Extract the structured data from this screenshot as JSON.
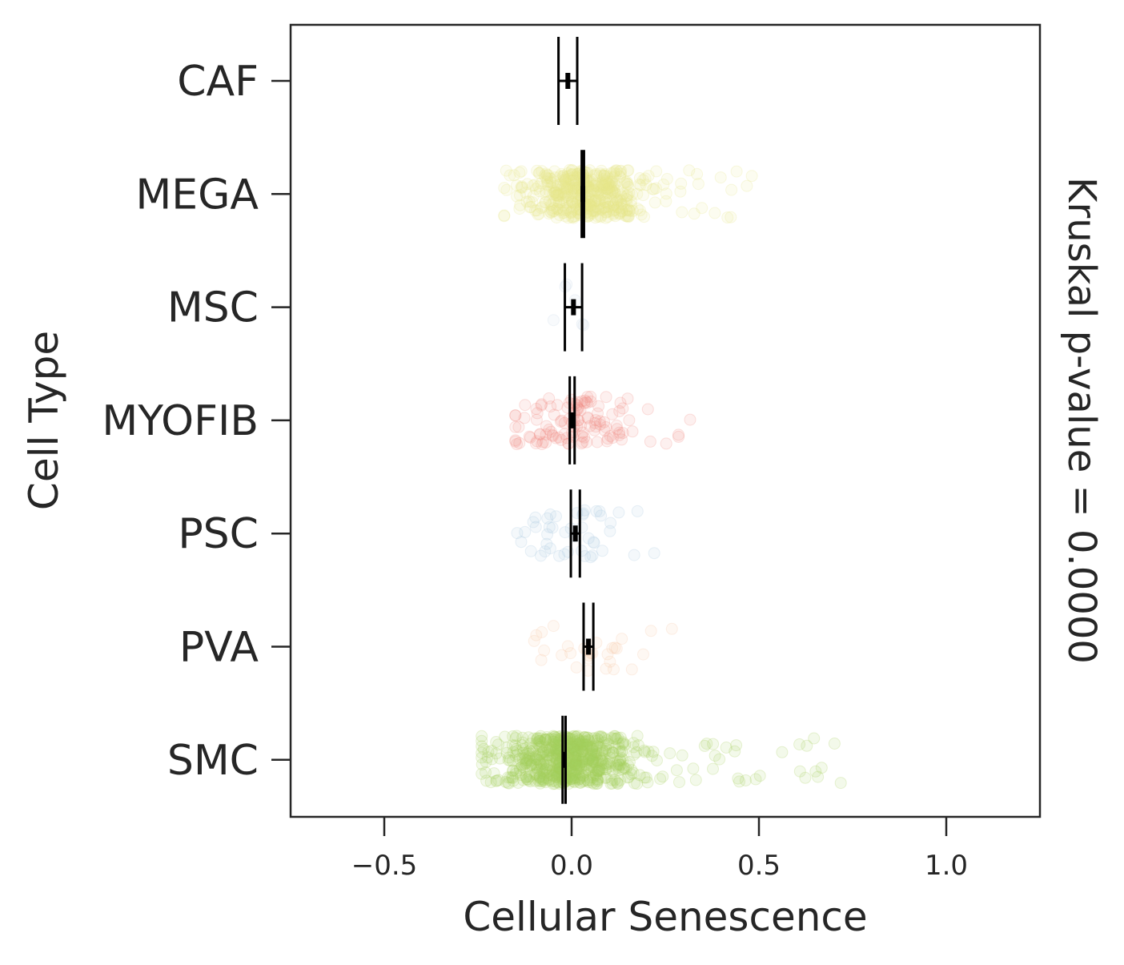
{
  "chart_data": {
    "type": "strip",
    "title": "",
    "xlabel": "Cellular Senescence",
    "ylabel": "Cell Type",
    "side_annotation": "Kruskal p-value = 0.0000",
    "xlim": [
      -0.75,
      1.25
    ],
    "xticks": [
      -0.5,
      0.0,
      0.5,
      1.0
    ],
    "xtick_labels": [
      "−0.5",
      "0.0",
      "0.5",
      "1.0"
    ],
    "categories": [
      "CAF",
      "MEGA",
      "MSC",
      "MYOFIB",
      "PSC",
      "PVA",
      "SMC"
    ],
    "series": [
      {
        "name": "CAF",
        "color": "#b3b3b3",
        "mean": -0.01,
        "ci": [
          -0.035,
          0.015
        ],
        "min": -0.04,
        "max": 0.0,
        "n_points": 0,
        "spread": 0.02
      },
      {
        "name": "MEGA",
        "color": "#e6e68a",
        "mean": 0.03,
        "ci": [
          0.027,
          0.033
        ],
        "min": -0.18,
        "max": 0.5,
        "n_points": 500,
        "spread": 0.08
      },
      {
        "name": "MSC",
        "color": "#c9d9e6",
        "mean": 0.005,
        "ci": [
          -0.018,
          0.028
        ],
        "min": -0.08,
        "max": 0.08,
        "n_points": 6,
        "spread": 0.04
      },
      {
        "name": "MYOFIB",
        "color": "#f28a82",
        "mean": 0.0,
        "ci": [
          -0.005,
          0.008
        ],
        "min": -0.15,
        "max": 0.39,
        "n_points": 120,
        "spread": 0.08
      },
      {
        "name": "PSC",
        "color": "#a9c6e0",
        "mean": 0.01,
        "ci": [
          -0.002,
          0.022
        ],
        "min": -0.2,
        "max": 0.23,
        "n_points": 45,
        "spread": 0.09
      },
      {
        "name": "PVA",
        "color": "#f7c9a6",
        "mean": 0.045,
        "ci": [
          0.032,
          0.058
        ],
        "min": -0.1,
        "max": 0.33,
        "n_points": 30,
        "spread": 0.07
      },
      {
        "name": "SMC",
        "color": "#a6d15c",
        "mean": -0.02,
        "ci": [
          -0.024,
          -0.016
        ],
        "min": -0.24,
        "max": 0.72,
        "n_points": 700,
        "spread": 0.09
      }
    ]
  }
}
